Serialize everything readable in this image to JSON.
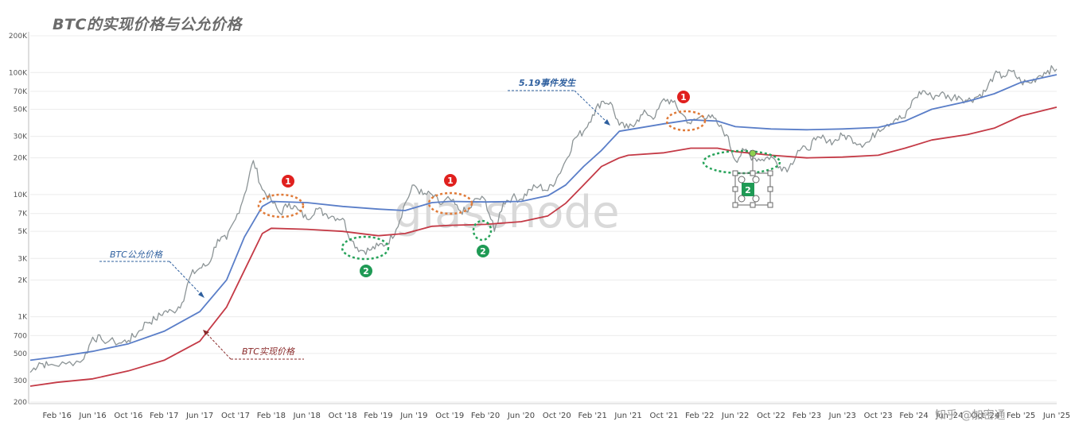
{
  "title": "BTC的实现价格与公允价格",
  "watermark": "glassnode",
  "footer": "知乎 @加密通",
  "chart_data": {
    "type": "line",
    "y_scale": "log",
    "ylim": [
      200,
      200000
    ],
    "y_ticks": [
      {
        "v": 200,
        "label": "200"
      },
      {
        "v": 300,
        "label": "300"
      },
      {
        "v": 500,
        "label": "500"
      },
      {
        "v": 700,
        "label": "700"
      },
      {
        "v": 1000,
        "label": "1K"
      },
      {
        "v": 2000,
        "label": "2K"
      },
      {
        "v": 3000,
        "label": "3K"
      },
      {
        "v": 5000,
        "label": "5K"
      },
      {
        "v": 7000,
        "label": "7K"
      },
      {
        "v": 10000,
        "label": "10K"
      },
      {
        "v": 20000,
        "label": "20K"
      },
      {
        "v": 30000,
        "label": "30K"
      },
      {
        "v": 50000,
        "label": "50K"
      },
      {
        "v": 70000,
        "label": "70K"
      },
      {
        "v": 100000,
        "label": "100K"
      },
      {
        "v": 200000,
        "label": "200K"
      }
    ],
    "x_range": [
      "2015-11",
      "2025-06"
    ],
    "x_ticks": [
      {
        "d": "2016-02",
        "label": "Feb '16"
      },
      {
        "d": "2016-06",
        "label": "Jun '16"
      },
      {
        "d": "2016-10",
        "label": "Oct '16"
      },
      {
        "d": "2017-02",
        "label": "Feb '17"
      },
      {
        "d": "2017-06",
        "label": "Jun '17"
      },
      {
        "d": "2017-10",
        "label": "Oct '17"
      },
      {
        "d": "2018-02",
        "label": "Feb '18"
      },
      {
        "d": "2018-06",
        "label": "Jun '18"
      },
      {
        "d": "2018-10",
        "label": "Oct '18"
      },
      {
        "d": "2019-02",
        "label": "Feb '19"
      },
      {
        "d": "2019-06",
        "label": "Jun '19"
      },
      {
        "d": "2019-10",
        "label": "Oct '19"
      },
      {
        "d": "2020-02",
        "label": "Feb '20"
      },
      {
        "d": "2020-06",
        "label": "Jun '20"
      },
      {
        "d": "2020-10",
        "label": "Oct '20"
      },
      {
        "d": "2021-02",
        "label": "Feb '21"
      },
      {
        "d": "2021-06",
        "label": "Jun '21"
      },
      {
        "d": "2021-10",
        "label": "Oct '21"
      },
      {
        "d": "2022-02",
        "label": "Feb '22"
      },
      {
        "d": "2022-06",
        "label": "Jun '22"
      },
      {
        "d": "2022-10",
        "label": "Oct '22"
      },
      {
        "d": "2023-02",
        "label": "Feb '23"
      },
      {
        "d": "2023-06",
        "label": "Jun '23"
      },
      {
        "d": "2023-10",
        "label": "Oct '23"
      },
      {
        "d": "2024-02",
        "label": "Feb '24"
      },
      {
        "d": "2024-06",
        "label": "Jun '24"
      },
      {
        "d": "2024-10",
        "label": "Oct '24"
      },
      {
        "d": "2025-02",
        "label": "Feb '25"
      },
      {
        "d": "2025-06",
        "label": "Jun '25"
      }
    ],
    "series": [
      {
        "name": "BTC价格",
        "color": "#8c9496",
        "points": [
          [
            "2015-11",
            350
          ],
          [
            "2015-12",
            420
          ],
          [
            "2016-01",
            400
          ],
          [
            "2016-03",
            410
          ],
          [
            "2016-05",
            450
          ],
          [
            "2016-06",
            680
          ],
          [
            "2016-07",
            650
          ],
          [
            "2016-09",
            610
          ],
          [
            "2016-10",
            640
          ],
          [
            "2016-11",
            730
          ],
          [
            "2016-12",
            900
          ],
          [
            "2017-01",
            950
          ],
          [
            "2017-02",
            1100
          ],
          [
            "2017-03",
            1100
          ],
          [
            "2017-04",
            1300
          ],
          [
            "2017-05",
            2200
          ],
          [
            "2017-06",
            2500
          ],
          [
            "2017-07",
            2700
          ],
          [
            "2017-08",
            4300
          ],
          [
            "2017-09",
            4300
          ],
          [
            "2017-10",
            6300
          ],
          [
            "2017-11",
            10000
          ],
          [
            "2017-12",
            19000
          ],
          [
            "2018-01",
            11000
          ],
          [
            "2018-02",
            9000
          ],
          [
            "2018-03",
            7000
          ],
          [
            "2018-04",
            8500
          ],
          [
            "2018-05",
            7500
          ],
          [
            "2018-06",
            6300
          ],
          [
            "2018-07",
            7700
          ],
          [
            "2018-08",
            7000
          ],
          [
            "2018-09",
            6600
          ],
          [
            "2018-10",
            6400
          ],
          [
            "2018-11",
            4200
          ],
          [
            "2018-12",
            3500
          ],
          [
            "2019-01",
            3500
          ],
          [
            "2019-02",
            3800
          ],
          [
            "2019-03",
            4000
          ],
          [
            "2019-04",
            5200
          ],
          [
            "2019-05",
            8500
          ],
          [
            "2019-06",
            12000
          ],
          [
            "2019-07",
            10000
          ],
          [
            "2019-08",
            10000
          ],
          [
            "2019-09",
            8300
          ],
          [
            "2019-10",
            9200
          ],
          [
            "2019-11",
            7500
          ],
          [
            "2019-12",
            7200
          ],
          [
            "2020-01",
            9300
          ],
          [
            "2020-02",
            9000
          ],
          [
            "2020-03",
            5000
          ],
          [
            "2020-04",
            8600
          ],
          [
            "2020-05",
            9500
          ],
          [
            "2020-06",
            9200
          ],
          [
            "2020-07",
            11000
          ],
          [
            "2020-08",
            11700
          ],
          [
            "2020-09",
            10800
          ],
          [
            "2020-10",
            13700
          ],
          [
            "2020-11",
            19000
          ],
          [
            "2020-12",
            29000
          ],
          [
            "2021-01",
            33000
          ],
          [
            "2021-02",
            45000
          ],
          [
            "2021-03",
            58000
          ],
          [
            "2021-04",
            57000
          ],
          [
            "2021-05",
            37000
          ],
          [
            "2021-06",
            35000
          ],
          [
            "2021-07",
            41000
          ],
          [
            "2021-08",
            47000
          ],
          [
            "2021-09",
            43000
          ],
          [
            "2021-10",
            61000
          ],
          [
            "2021-11",
            57000
          ],
          [
            "2021-12",
            46000
          ],
          [
            "2022-01",
            38000
          ],
          [
            "2022-02",
            43000
          ],
          [
            "2022-03",
            45000
          ],
          [
            "2022-04",
            38000
          ],
          [
            "2022-05",
            31000
          ],
          [
            "2022-06",
            19000
          ],
          [
            "2022-07",
            23000
          ],
          [
            "2022-08",
            20000
          ],
          [
            "2022-09",
            19500
          ],
          [
            "2022-10",
            20500
          ],
          [
            "2022-11",
            17000
          ],
          [
            "2022-12",
            16500
          ],
          [
            "2023-01",
            23000
          ],
          [
            "2023-02",
            23500
          ],
          [
            "2023-03",
            28000
          ],
          [
            "2023-04",
            29000
          ],
          [
            "2023-05",
            27000
          ],
          [
            "2023-06",
            30500
          ],
          [
            "2023-07",
            29000
          ],
          [
            "2023-08",
            26000
          ],
          [
            "2023-09",
            27000
          ],
          [
            "2023-10",
            34500
          ],
          [
            "2023-11",
            37700
          ],
          [
            "2023-12",
            42000
          ],
          [
            "2024-01",
            42500
          ],
          [
            "2024-02",
            61000
          ],
          [
            "2024-03",
            71000
          ],
          [
            "2024-04",
            63000
          ],
          [
            "2024-05",
            67500
          ],
          [
            "2024-06",
            62000
          ],
          [
            "2024-07",
            64000
          ],
          [
            "2024-08",
            59000
          ],
          [
            "2024-09",
            63000
          ],
          [
            "2024-10",
            70000
          ],
          [
            "2024-11",
            96000
          ],
          [
            "2024-12",
            93500
          ],
          [
            "2025-01",
            102000
          ],
          [
            "2025-02",
            84000
          ],
          [
            "2025-03",
            82000
          ],
          [
            "2025-04",
            94000
          ],
          [
            "2025-05",
            104000
          ],
          [
            "2025-06",
            107000
          ]
        ]
      },
      {
        "name": "BTC公允价格",
        "color": "#5a7ec8",
        "points": [
          [
            "2015-11",
            440
          ],
          [
            "2016-02",
            470
          ],
          [
            "2016-06",
            520
          ],
          [
            "2016-10",
            600
          ],
          [
            "2017-02",
            760
          ],
          [
            "2017-06",
            1100
          ],
          [
            "2017-09",
            2000
          ],
          [
            "2017-11",
            4500
          ],
          [
            "2018-01",
            8000
          ],
          [
            "2018-02",
            8800
          ],
          [
            "2018-06",
            8600
          ],
          [
            "2018-10",
            8000
          ],
          [
            "2019-02",
            7600
          ],
          [
            "2019-05",
            7400
          ],
          [
            "2019-08",
            8600
          ],
          [
            "2019-10",
            8800
          ],
          [
            "2020-02",
            8700
          ],
          [
            "2020-06",
            8800
          ],
          [
            "2020-09",
            9800
          ],
          [
            "2020-11",
            12000
          ],
          [
            "2021-01",
            17000
          ],
          [
            "2021-03",
            23000
          ],
          [
            "2021-05",
            33000
          ],
          [
            "2021-06",
            34000
          ],
          [
            "2021-10",
            38000
          ],
          [
            "2022-01",
            41000
          ],
          [
            "2022-04",
            40000
          ],
          [
            "2022-06",
            36000
          ],
          [
            "2022-10",
            34500
          ],
          [
            "2023-02",
            34000
          ],
          [
            "2023-06",
            34500
          ],
          [
            "2023-10",
            35500
          ],
          [
            "2024-01",
            40000
          ],
          [
            "2024-04",
            50000
          ],
          [
            "2024-08",
            58000
          ],
          [
            "2024-11",
            67000
          ],
          [
            "2025-02",
            83000
          ],
          [
            "2025-06",
            96000
          ]
        ]
      },
      {
        "name": "BTC实现价格",
        "color": "#c43a46",
        "points": [
          [
            "2015-11",
            270
          ],
          [
            "2016-02",
            290
          ],
          [
            "2016-06",
            310
          ],
          [
            "2016-10",
            360
          ],
          [
            "2017-02",
            440
          ],
          [
            "2017-06",
            630
          ],
          [
            "2017-09",
            1200
          ],
          [
            "2017-11",
            2400
          ],
          [
            "2018-01",
            4800
          ],
          [
            "2018-02",
            5300
          ],
          [
            "2018-06",
            5200
          ],
          [
            "2018-10",
            5000
          ],
          [
            "2019-02",
            4600
          ],
          [
            "2019-05",
            4800
          ],
          [
            "2019-08",
            5500
          ],
          [
            "2019-10",
            5600
          ],
          [
            "2020-02",
            5700
          ],
          [
            "2020-06",
            6000
          ],
          [
            "2020-09",
            6700
          ],
          [
            "2020-11",
            8500
          ],
          [
            "2021-01",
            12000
          ],
          [
            "2021-03",
            17000
          ],
          [
            "2021-05",
            20000
          ],
          [
            "2021-06",
            21000
          ],
          [
            "2021-10",
            22000
          ],
          [
            "2022-01",
            24000
          ],
          [
            "2022-04",
            24000
          ],
          [
            "2022-06",
            22500
          ],
          [
            "2022-10",
            21000
          ],
          [
            "2023-02",
            20000
          ],
          [
            "2023-06",
            20300
          ],
          [
            "2023-10",
            21000
          ],
          [
            "2024-01",
            24000
          ],
          [
            "2024-04",
            28000
          ],
          [
            "2024-08",
            31000
          ],
          [
            "2024-11",
            35000
          ],
          [
            "2025-02",
            44000
          ],
          [
            "2025-06",
            52000
          ]
        ]
      }
    ],
    "annotations": {
      "fair_label": "BTC公允价格",
      "realized_label": "BTC实现价格",
      "event_label": "5.19事件发生",
      "badge_1": "1",
      "badge_2": "2"
    }
  }
}
